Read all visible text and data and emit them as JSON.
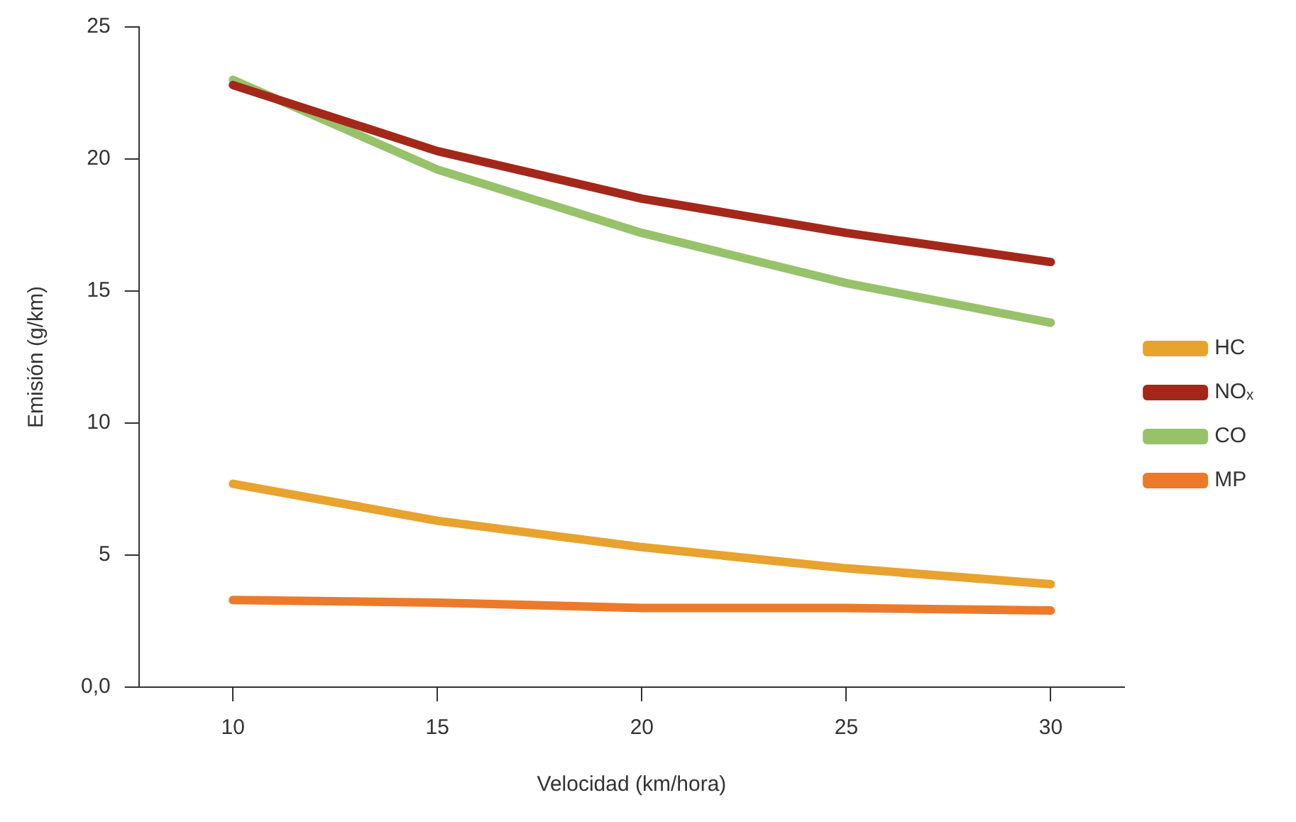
{
  "chart_data": {
    "type": "line",
    "xlabel": "Velocidad (km/hora)",
    "ylabel": "Emisión (g/km)",
    "x": [
      10,
      15,
      20,
      25,
      30
    ],
    "series": [
      {
        "name": "HC",
        "color": "#e8a22e",
        "values": [
          7.7,
          6.3,
          5.3,
          4.5,
          3.9
        ]
      },
      {
        "name": "NOₓ",
        "color": "#a3281a",
        "values": [
          22.8,
          20.3,
          18.5,
          17.2,
          16.1
        ]
      },
      {
        "name": "CO",
        "color": "#97c26a",
        "values": [
          23.0,
          19.6,
          17.2,
          15.3,
          13.8
        ]
      },
      {
        "name": "MP",
        "color": "#ec7a2a",
        "values": [
          3.3,
          3.2,
          3.0,
          3.0,
          2.9
        ]
      }
    ],
    "xlim": [
      7.7,
      31.8
    ],
    "xticks": [
      10,
      15,
      20,
      25,
      30
    ],
    "ylim": [
      0,
      25
    ],
    "yticks": [
      {
        "value": 0,
        "label": "0,0"
      },
      5,
      10,
      15,
      20,
      25
    ],
    "grid": false,
    "legend": "right",
    "marker": "none",
    "line_style": "solid"
  }
}
